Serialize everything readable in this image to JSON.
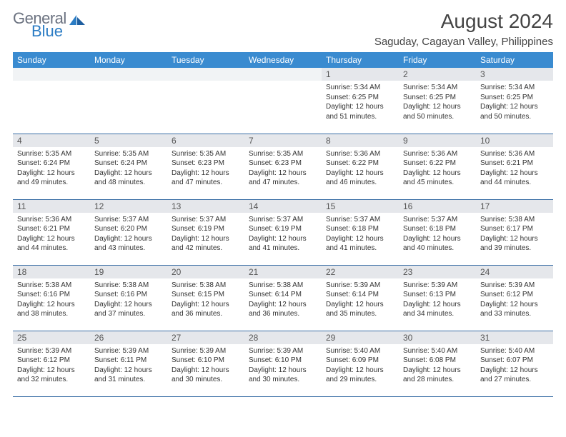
{
  "logo": {
    "text1": "General",
    "text2": "Blue"
  },
  "title": "August 2024",
  "location": "Saguday, Cagayan Valley, Philippines",
  "header_bg": "#3a8bd0",
  "header_fg": "#ffffff",
  "daynum_bg": "#e5e7eb",
  "border_color": "#3a6ea5",
  "weekdays": [
    "Sunday",
    "Monday",
    "Tuesday",
    "Wednesday",
    "Thursday",
    "Friday",
    "Saturday"
  ],
  "days": [
    null,
    null,
    null,
    null,
    {
      "n": "1",
      "sunrise": "5:34 AM",
      "sunset": "6:25 PM",
      "daylight": "12 hours and 51 minutes."
    },
    {
      "n": "2",
      "sunrise": "5:34 AM",
      "sunset": "6:25 PM",
      "daylight": "12 hours and 50 minutes."
    },
    {
      "n": "3",
      "sunrise": "5:34 AM",
      "sunset": "6:25 PM",
      "daylight": "12 hours and 50 minutes."
    },
    {
      "n": "4",
      "sunrise": "5:35 AM",
      "sunset": "6:24 PM",
      "daylight": "12 hours and 49 minutes."
    },
    {
      "n": "5",
      "sunrise": "5:35 AM",
      "sunset": "6:24 PM",
      "daylight": "12 hours and 48 minutes."
    },
    {
      "n": "6",
      "sunrise": "5:35 AM",
      "sunset": "6:23 PM",
      "daylight": "12 hours and 47 minutes."
    },
    {
      "n": "7",
      "sunrise": "5:35 AM",
      "sunset": "6:23 PM",
      "daylight": "12 hours and 47 minutes."
    },
    {
      "n": "8",
      "sunrise": "5:36 AM",
      "sunset": "6:22 PM",
      "daylight": "12 hours and 46 minutes."
    },
    {
      "n": "9",
      "sunrise": "5:36 AM",
      "sunset": "6:22 PM",
      "daylight": "12 hours and 45 minutes."
    },
    {
      "n": "10",
      "sunrise": "5:36 AM",
      "sunset": "6:21 PM",
      "daylight": "12 hours and 44 minutes."
    },
    {
      "n": "11",
      "sunrise": "5:36 AM",
      "sunset": "6:21 PM",
      "daylight": "12 hours and 44 minutes."
    },
    {
      "n": "12",
      "sunrise": "5:37 AM",
      "sunset": "6:20 PM",
      "daylight": "12 hours and 43 minutes."
    },
    {
      "n": "13",
      "sunrise": "5:37 AM",
      "sunset": "6:19 PM",
      "daylight": "12 hours and 42 minutes."
    },
    {
      "n": "14",
      "sunrise": "5:37 AM",
      "sunset": "6:19 PM",
      "daylight": "12 hours and 41 minutes."
    },
    {
      "n": "15",
      "sunrise": "5:37 AM",
      "sunset": "6:18 PM",
      "daylight": "12 hours and 41 minutes."
    },
    {
      "n": "16",
      "sunrise": "5:37 AM",
      "sunset": "6:18 PM",
      "daylight": "12 hours and 40 minutes."
    },
    {
      "n": "17",
      "sunrise": "5:38 AM",
      "sunset": "6:17 PM",
      "daylight": "12 hours and 39 minutes."
    },
    {
      "n": "18",
      "sunrise": "5:38 AM",
      "sunset": "6:16 PM",
      "daylight": "12 hours and 38 minutes."
    },
    {
      "n": "19",
      "sunrise": "5:38 AM",
      "sunset": "6:16 PM",
      "daylight": "12 hours and 37 minutes."
    },
    {
      "n": "20",
      "sunrise": "5:38 AM",
      "sunset": "6:15 PM",
      "daylight": "12 hours and 36 minutes."
    },
    {
      "n": "21",
      "sunrise": "5:38 AM",
      "sunset": "6:14 PM",
      "daylight": "12 hours and 36 minutes."
    },
    {
      "n": "22",
      "sunrise": "5:39 AM",
      "sunset": "6:14 PM",
      "daylight": "12 hours and 35 minutes."
    },
    {
      "n": "23",
      "sunrise": "5:39 AM",
      "sunset": "6:13 PM",
      "daylight": "12 hours and 34 minutes."
    },
    {
      "n": "24",
      "sunrise": "5:39 AM",
      "sunset": "6:12 PM",
      "daylight": "12 hours and 33 minutes."
    },
    {
      "n": "25",
      "sunrise": "5:39 AM",
      "sunset": "6:12 PM",
      "daylight": "12 hours and 32 minutes."
    },
    {
      "n": "26",
      "sunrise": "5:39 AM",
      "sunset": "6:11 PM",
      "daylight": "12 hours and 31 minutes."
    },
    {
      "n": "27",
      "sunrise": "5:39 AM",
      "sunset": "6:10 PM",
      "daylight": "12 hours and 30 minutes."
    },
    {
      "n": "28",
      "sunrise": "5:39 AM",
      "sunset": "6:10 PM",
      "daylight": "12 hours and 30 minutes."
    },
    {
      "n": "29",
      "sunrise": "5:40 AM",
      "sunset": "6:09 PM",
      "daylight": "12 hours and 29 minutes."
    },
    {
      "n": "30",
      "sunrise": "5:40 AM",
      "sunset": "6:08 PM",
      "daylight": "12 hours and 28 minutes."
    },
    {
      "n": "31",
      "sunrise": "5:40 AM",
      "sunset": "6:07 PM",
      "daylight": "12 hours and 27 minutes."
    }
  ]
}
